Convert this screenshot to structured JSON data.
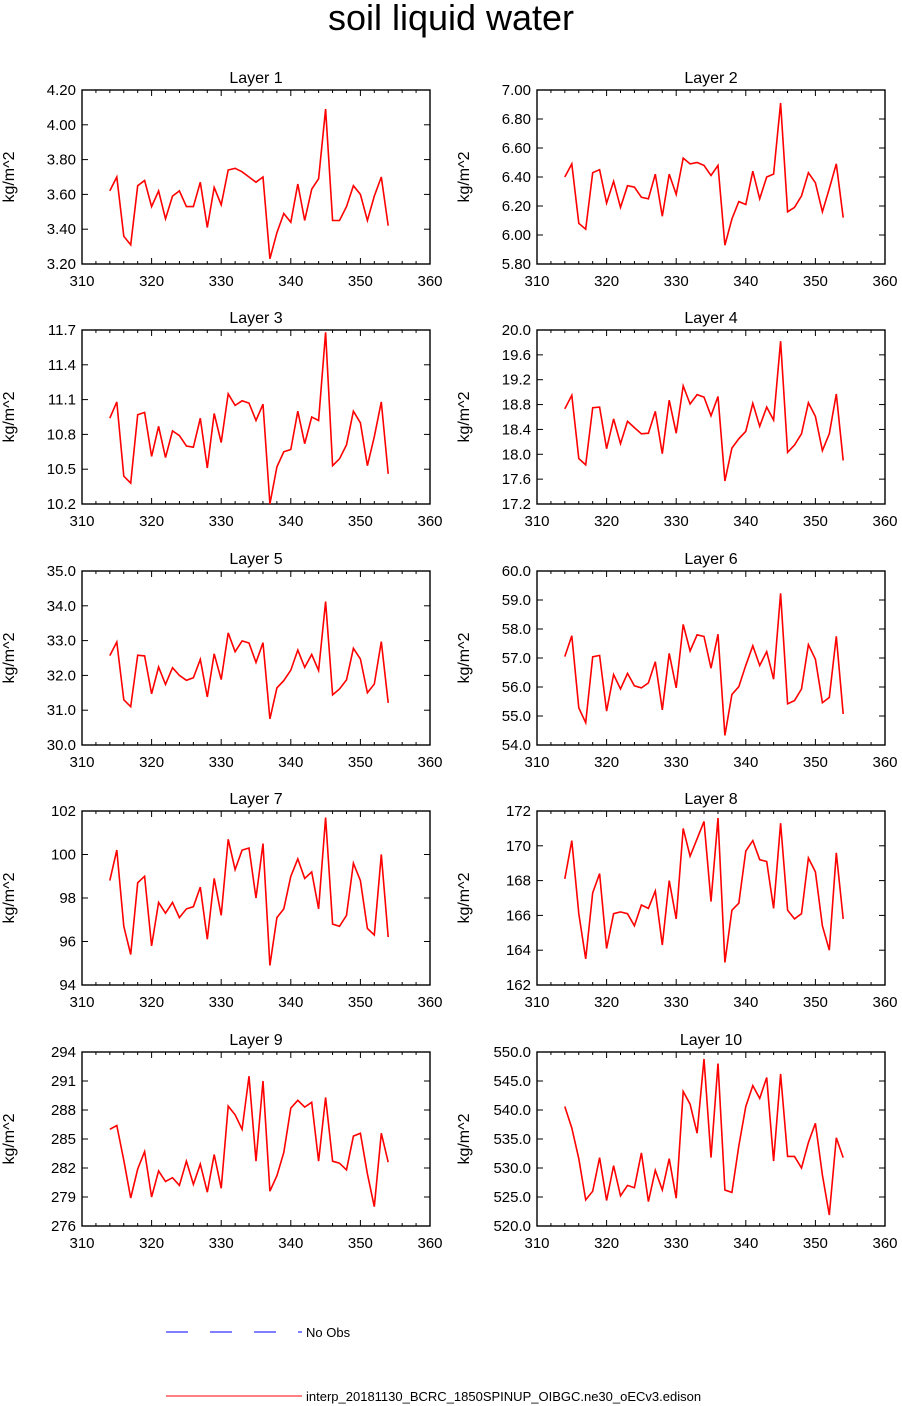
{
  "title": "soil liquid water",
  "chart_data": [
    {
      "type": "line",
      "title": "Layer 1",
      "xlabel": "",
      "ylabel": "kg/m^2",
      "xlim": [
        310,
        360
      ],
      "ylim": [
        3.2,
        4.2
      ],
      "xticks": [
        "310",
        "320",
        "330",
        "340",
        "350",
        "360"
      ],
      "yticks": [
        "3.20",
        "3.40",
        "3.60",
        "3.80",
        "4.00",
        "4.20"
      ],
      "x": [
        314,
        315,
        316,
        317,
        318,
        319,
        320,
        321,
        322,
        323,
        324,
        325,
        326,
        327,
        328,
        329,
        330,
        331,
        332,
        333,
        334,
        335,
        336,
        337,
        338,
        339,
        340,
        341,
        342,
        343,
        344,
        345,
        346,
        347,
        348,
        349,
        350,
        351,
        352,
        353,
        354
      ],
      "series": [
        {
          "values": [
            3.62,
            3.7,
            3.36,
            3.31,
            3.65,
            3.68,
            3.53,
            3.62,
            3.46,
            3.59,
            3.62,
            3.53,
            3.53,
            3.67,
            3.41,
            3.64,
            3.54,
            3.74,
            3.75,
            3.73,
            3.7,
            3.67,
            3.7,
            3.23,
            3.38,
            3.49,
            3.44,
            3.66,
            3.45,
            3.63,
            3.69,
            4.09,
            3.45,
            3.45,
            3.53,
            3.65,
            3.6,
            3.45,
            3.59,
            3.7,
            3.42
          ]
        }
      ]
    },
    {
      "type": "line",
      "title": "Layer 2",
      "xlabel": "",
      "ylabel": "kg/m^2",
      "xlim": [
        310,
        360
      ],
      "ylim": [
        5.8,
        7.0
      ],
      "xticks": [
        "310",
        "320",
        "330",
        "340",
        "350",
        "360"
      ],
      "yticks": [
        "5.80",
        "6.00",
        "6.20",
        "6.40",
        "6.60",
        "6.80",
        "7.00"
      ],
      "x": [
        314,
        315,
        316,
        317,
        318,
        319,
        320,
        321,
        322,
        323,
        324,
        325,
        326,
        327,
        328,
        329,
        330,
        331,
        332,
        333,
        334,
        335,
        336,
        337,
        338,
        339,
        340,
        341,
        342,
        343,
        344,
        345,
        346,
        347,
        348,
        349,
        350,
        351,
        352,
        353,
        354
      ],
      "series": [
        {
          "values": [
            6.4,
            6.49,
            6.08,
            6.04,
            6.43,
            6.45,
            6.22,
            6.37,
            6.19,
            6.34,
            6.33,
            6.26,
            6.25,
            6.42,
            6.13,
            6.42,
            6.28,
            6.53,
            6.49,
            6.5,
            6.48,
            6.41,
            6.48,
            5.93,
            6.11,
            6.23,
            6.21,
            6.44,
            6.25,
            6.4,
            6.42,
            6.91,
            6.16,
            6.19,
            6.27,
            6.43,
            6.36,
            6.16,
            6.32,
            6.49,
            6.12
          ]
        }
      ]
    },
    {
      "type": "line",
      "title": "Layer 3",
      "xlabel": "",
      "ylabel": "kg/m^2",
      "xlim": [
        310,
        360
      ],
      "ylim": [
        10.2,
        11.7
      ],
      "xticks": [
        "310",
        "320",
        "330",
        "340",
        "350",
        "360"
      ],
      "yticks": [
        "10.2",
        "10.5",
        "10.8",
        "11.1",
        "11.4",
        "11.7"
      ],
      "x": [
        314,
        315,
        316,
        317,
        318,
        319,
        320,
        321,
        322,
        323,
        324,
        325,
        326,
        327,
        328,
        329,
        330,
        331,
        332,
        333,
        334,
        335,
        336,
        337,
        338,
        339,
        340,
        341,
        342,
        343,
        344,
        345,
        346,
        347,
        348,
        349,
        350,
        351,
        352,
        353,
        354
      ],
      "series": [
        {
          "values": [
            10.94,
            11.08,
            10.44,
            10.38,
            10.97,
            10.99,
            10.61,
            10.87,
            10.6,
            10.83,
            10.79,
            10.7,
            10.69,
            10.94,
            10.51,
            10.98,
            10.73,
            11.15,
            11.05,
            11.09,
            11.07,
            10.92,
            11.06,
            10.2,
            10.52,
            10.65,
            10.67,
            11.0,
            10.72,
            10.95,
            10.92,
            11.68,
            10.53,
            10.59,
            10.71,
            11.0,
            10.9,
            10.53,
            10.78,
            11.08,
            10.46
          ]
        }
      ]
    },
    {
      "type": "line",
      "title": "Layer 4",
      "xlabel": "",
      "ylabel": "kg/m^2",
      "xlim": [
        310,
        360
      ],
      "ylim": [
        17.2,
        20.0
      ],
      "xticks": [
        "310",
        "320",
        "330",
        "340",
        "350",
        "360"
      ],
      "yticks": [
        "17.2",
        "17.6",
        "18.0",
        "18.4",
        "18.8",
        "19.2",
        "19.6",
        "20.0"
      ],
      "x": [
        314,
        315,
        316,
        317,
        318,
        319,
        320,
        321,
        322,
        323,
        324,
        325,
        326,
        327,
        328,
        329,
        330,
        331,
        332,
        333,
        334,
        335,
        336,
        337,
        338,
        339,
        340,
        341,
        342,
        343,
        344,
        345,
        346,
        347,
        348,
        349,
        350,
        351,
        352,
        353,
        354
      ],
      "series": [
        {
          "values": [
            18.73,
            18.95,
            17.93,
            17.83,
            18.75,
            18.76,
            18.09,
            18.57,
            18.17,
            18.53,
            18.43,
            18.33,
            18.34,
            18.69,
            18.01,
            18.87,
            18.34,
            19.1,
            18.81,
            18.96,
            18.92,
            18.62,
            18.93,
            17.57,
            18.1,
            18.25,
            18.37,
            18.82,
            18.45,
            18.76,
            18.55,
            19.82,
            18.03,
            18.15,
            18.33,
            18.83,
            18.61,
            18.06,
            18.33,
            18.97,
            17.9
          ]
        }
      ]
    },
    {
      "type": "line",
      "title": "Layer 5",
      "xlabel": "",
      "ylabel": "kg/m^2",
      "xlim": [
        310,
        360
      ],
      "ylim": [
        30.0,
        35.0
      ],
      "xticks": [
        "310",
        "320",
        "330",
        "340",
        "350",
        "360"
      ],
      "yticks": [
        "30.0",
        "31.0",
        "32.0",
        "33.0",
        "34.0",
        "35.0"
      ],
      "x": [
        314,
        315,
        316,
        317,
        318,
        319,
        320,
        321,
        322,
        323,
        324,
        325,
        326,
        327,
        328,
        329,
        330,
        331,
        332,
        333,
        334,
        335,
        336,
        337,
        338,
        339,
        340,
        341,
        342,
        343,
        344,
        345,
        346,
        347,
        348,
        349,
        350,
        351,
        352,
        353,
        354
      ],
      "series": [
        {
          "values": [
            32.57,
            32.96,
            31.3,
            31.1,
            32.58,
            32.56,
            31.47,
            32.24,
            31.74,
            32.22,
            32.0,
            31.86,
            31.93,
            32.46,
            31.38,
            32.62,
            31.88,
            33.22,
            32.68,
            32.99,
            32.93,
            32.37,
            32.94,
            30.75,
            31.64,
            31.85,
            32.15,
            32.73,
            32.23,
            32.6,
            32.14,
            34.12,
            31.44,
            31.61,
            31.87,
            32.78,
            32.47,
            31.5,
            31.75,
            32.97,
            31.21
          ]
        }
      ]
    },
    {
      "type": "line",
      "title": "Layer 6",
      "xlabel": "",
      "ylabel": "kg/m^2",
      "xlim": [
        310,
        360
      ],
      "ylim": [
        54.0,
        60.0
      ],
      "xticks": [
        "310",
        "320",
        "330",
        "340",
        "350",
        "360"
      ],
      "yticks": [
        "54.0",
        "55.0",
        "56.0",
        "57.0",
        "58.0",
        "59.0",
        "60.0"
      ],
      "x": [
        314,
        315,
        316,
        317,
        318,
        319,
        320,
        321,
        322,
        323,
        324,
        325,
        326,
        327,
        328,
        329,
        330,
        331,
        332,
        333,
        334,
        335,
        336,
        337,
        338,
        339,
        340,
        341,
        342,
        343,
        344,
        345,
        346,
        347,
        348,
        349,
        350,
        351,
        352,
        353,
        354
      ],
      "series": [
        {
          "values": [
            57.05,
            57.77,
            55.28,
            54.77,
            57.04,
            57.09,
            55.17,
            56.43,
            55.93,
            56.47,
            56.04,
            55.97,
            56.14,
            56.87,
            55.21,
            57.16,
            55.97,
            58.16,
            57.24,
            57.8,
            57.74,
            56.65,
            57.82,
            54.33,
            55.74,
            56.01,
            56.75,
            57.42,
            56.74,
            57.22,
            56.27,
            59.23,
            55.42,
            55.53,
            55.93,
            57.46,
            56.96,
            55.46,
            55.64,
            57.75,
            55.07
          ]
        }
      ]
    },
    {
      "type": "line",
      "title": "Layer 7",
      "xlabel": "",
      "ylabel": "kg/m^2",
      "xlim": [
        310,
        360
      ],
      "ylim": [
        94,
        102
      ],
      "xticks": [
        "310",
        "320",
        "330",
        "340",
        "350",
        "360"
      ],
      "yticks": [
        "94",
        "96",
        "98",
        "100",
        "102"
      ],
      "x": [
        314,
        315,
        316,
        317,
        318,
        319,
        320,
        321,
        322,
        323,
        324,
        325,
        326,
        327,
        328,
        329,
        330,
        331,
        332,
        333,
        334,
        335,
        336,
        337,
        338,
        339,
        340,
        341,
        342,
        343,
        344,
        345,
        346,
        347,
        348,
        349,
        350,
        351,
        352,
        353,
        354
      ],
      "series": [
        {
          "values": [
            98.8,
            100.2,
            96.7,
            95.4,
            98.7,
            99.0,
            95.8,
            97.8,
            97.3,
            97.8,
            97.1,
            97.5,
            97.6,
            98.5,
            96.1,
            98.9,
            97.2,
            100.7,
            99.3,
            100.2,
            100.3,
            98.0,
            100.5,
            94.9,
            97.1,
            97.5,
            99.0,
            99.8,
            98.9,
            99.2,
            97.5,
            101.7,
            96.8,
            96.7,
            97.2,
            99.6,
            98.8,
            96.6,
            96.3,
            100.0,
            96.2
          ]
        }
      ]
    },
    {
      "type": "line",
      "title": "Layer 8",
      "xlabel": "",
      "ylabel": "kg/m^2",
      "xlim": [
        310,
        360
      ],
      "ylim": [
        162,
        172
      ],
      "xticks": [
        "310",
        "320",
        "330",
        "340",
        "350",
        "360"
      ],
      "yticks": [
        "162",
        "164",
        "166",
        "168",
        "170",
        "172"
      ],
      "x": [
        314,
        315,
        316,
        317,
        318,
        319,
        320,
        321,
        322,
        323,
        324,
        325,
        326,
        327,
        328,
        329,
        330,
        331,
        332,
        333,
        334,
        335,
        336,
        337,
        338,
        339,
        340,
        341,
        342,
        343,
        344,
        345,
        346,
        347,
        348,
        349,
        350,
        351,
        352,
        353,
        354
      ],
      "series": [
        {
          "values": [
            168.1,
            170.3,
            166.1,
            163.5,
            167.3,
            168.4,
            164.1,
            166.1,
            166.2,
            166.1,
            165.4,
            166.6,
            166.4,
            167.4,
            164.3,
            168.0,
            165.8,
            171.0,
            169.4,
            170.4,
            171.4,
            166.8,
            171.6,
            163.3,
            166.3,
            166.7,
            169.7,
            170.3,
            169.2,
            169.1,
            166.4,
            171.3,
            166.3,
            165.8,
            166.1,
            169.3,
            168.5,
            165.4,
            164.0,
            169.6,
            165.8
          ]
        }
      ]
    },
    {
      "type": "line",
      "title": "Layer 9",
      "xlabel": "",
      "ylabel": "kg/m^2",
      "xlim": [
        310,
        360
      ],
      "ylim": [
        276,
        294
      ],
      "xticks": [
        "310",
        "320",
        "330",
        "340",
        "350",
        "360"
      ],
      "yticks": [
        "276",
        "279",
        "282",
        "285",
        "288",
        "291",
        "294"
      ],
      "x": [
        314,
        315,
        316,
        317,
        318,
        319,
        320,
        321,
        322,
        323,
        324,
        325,
        326,
        327,
        328,
        329,
        330,
        331,
        332,
        333,
        334,
        335,
        336,
        337,
        338,
        339,
        340,
        341,
        342,
        343,
        344,
        345,
        346,
        347,
        348,
        349,
        350,
        351,
        352,
        353,
        354
      ],
      "series": [
        {
          "values": [
            286.0,
            286.4,
            282.8,
            278.9,
            281.9,
            283.7,
            279.0,
            281.7,
            280.6,
            281.0,
            280.2,
            282.7,
            280.3,
            282.4,
            279.5,
            283.4,
            279.9,
            288.4,
            287.5,
            286.0,
            291.5,
            282.7,
            291.0,
            279.6,
            281.2,
            283.6,
            288.2,
            289.0,
            288.3,
            288.8,
            282.7,
            289.3,
            282.7,
            282.5,
            281.8,
            285.3,
            285.6,
            281.4,
            278.0,
            285.6,
            282.6
          ]
        }
      ]
    },
    {
      "type": "line",
      "title": "Layer 10",
      "xlabel": "",
      "ylabel": "kg/m^2",
      "xlim": [
        310,
        360
      ],
      "ylim": [
        520,
        550
      ],
      "xticks": [
        "310",
        "320",
        "330",
        "340",
        "350",
        "360"
      ],
      "yticks": [
        "520.0",
        "525.0",
        "530.0",
        "535.0",
        "540.0",
        "545.0",
        "550.0"
      ],
      "x": [
        314,
        315,
        316,
        317,
        318,
        319,
        320,
        321,
        322,
        323,
        324,
        325,
        326,
        327,
        328,
        329,
        330,
        331,
        332,
        333,
        334,
        335,
        336,
        337,
        338,
        339,
        340,
        341,
        342,
        343,
        344,
        345,
        346,
        347,
        348,
        349,
        350,
        351,
        352,
        353,
        354
      ],
      "series": [
        {
          "values": [
            540.6,
            536.9,
            531.6,
            524.5,
            526.0,
            531.8,
            524.4,
            530.4,
            525.2,
            527.0,
            526.6,
            532.6,
            524.2,
            529.6,
            526.2,
            531.6,
            524.8,
            543.2,
            541.0,
            536.0,
            548.8,
            531.8,
            548.0,
            526.2,
            525.8,
            533.8,
            540.6,
            544.2,
            542.0,
            545.6,
            531.2,
            546.2,
            532.0,
            532.0,
            530.0,
            534.4,
            537.7,
            528.8,
            521.9,
            535.2,
            531.8
          ]
        }
      ]
    }
  ],
  "legend": {
    "obs_label": "No Obs",
    "obs_color": "#0000ff",
    "model_label": "interp_20181130_BCRC_1850SPINUP_OIBGC.ne30_oECv3.edison",
    "model_color": "#ff0000"
  }
}
